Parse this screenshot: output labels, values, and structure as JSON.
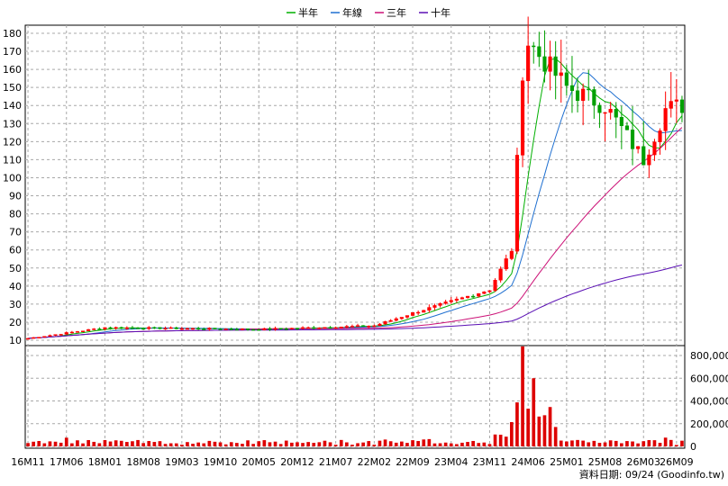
{
  "chart_data": {
    "type": "candlestick",
    "legend": [
      {
        "name": "半年",
        "color": "#00b000"
      },
      {
        "name": "年線",
        "color": "#1e6fd0"
      },
      {
        "name": "三年",
        "color": "#cc1177"
      },
      {
        "name": "十年",
        "color": "#5a0fb4"
      }
    ],
    "legend_position": "top-center",
    "price_axis": {
      "ylim": [
        10,
        185
      ],
      "ticks": [
        10,
        20,
        30,
        40,
        50,
        60,
        70,
        80,
        90,
        100,
        110,
        120,
        130,
        140,
        150,
        160,
        170,
        180
      ]
    },
    "volume_axis": {
      "ylim": [
        0,
        900000
      ],
      "ticks": [
        0,
        200000,
        400000,
        600000,
        800000
      ],
      "tick_labels": [
        "0",
        "200,000",
        "400,000",
        "600,000",
        "800,000"
      ]
    },
    "x_axis": {
      "n_periods": 120,
      "tick_labels": [
        "16M11",
        "17M06",
        "18M01",
        "18M08",
        "19M03",
        "19M10",
        "20M05",
        "20M12",
        "21M07",
        "22M02",
        "22M09",
        "23M04",
        "23M11",
        "24M06",
        "25M01",
        "25M08",
        "26M03",
        "26M09"
      ],
      "tick_period": [
        0,
        7,
        14,
        21,
        28,
        35,
        42,
        49,
        56,
        63,
        70,
        77,
        84,
        91,
        98,
        105,
        112,
        118
      ]
    },
    "grid": true,
    "colors": {
      "up": "#ff0000",
      "down": "#00a000",
      "volume": "#dd0000"
    },
    "key_points": [
      {
        "period": 0,
        "price": 11
      },
      {
        "period": 14,
        "price": 17
      },
      {
        "period": 42,
        "price": 16
      },
      {
        "period": 63,
        "price": 18
      },
      {
        "period": 70,
        "price": 25
      },
      {
        "period": 84,
        "price": 38
      },
      {
        "period": 88,
        "price": 60
      },
      {
        "period": 90,
        "price": 160
      },
      {
        "period": 91,
        "price": 175
      },
      {
        "period": 98,
        "price": 150
      },
      {
        "period": 105,
        "price": 140
      },
      {
        "period": 112,
        "price": 110
      },
      {
        "period": 116,
        "price": 138
      },
      {
        "period": 119,
        "price": 140
      }
    ],
    "footer": "資料日期: 09/24 (Goodinfo.tw)"
  }
}
